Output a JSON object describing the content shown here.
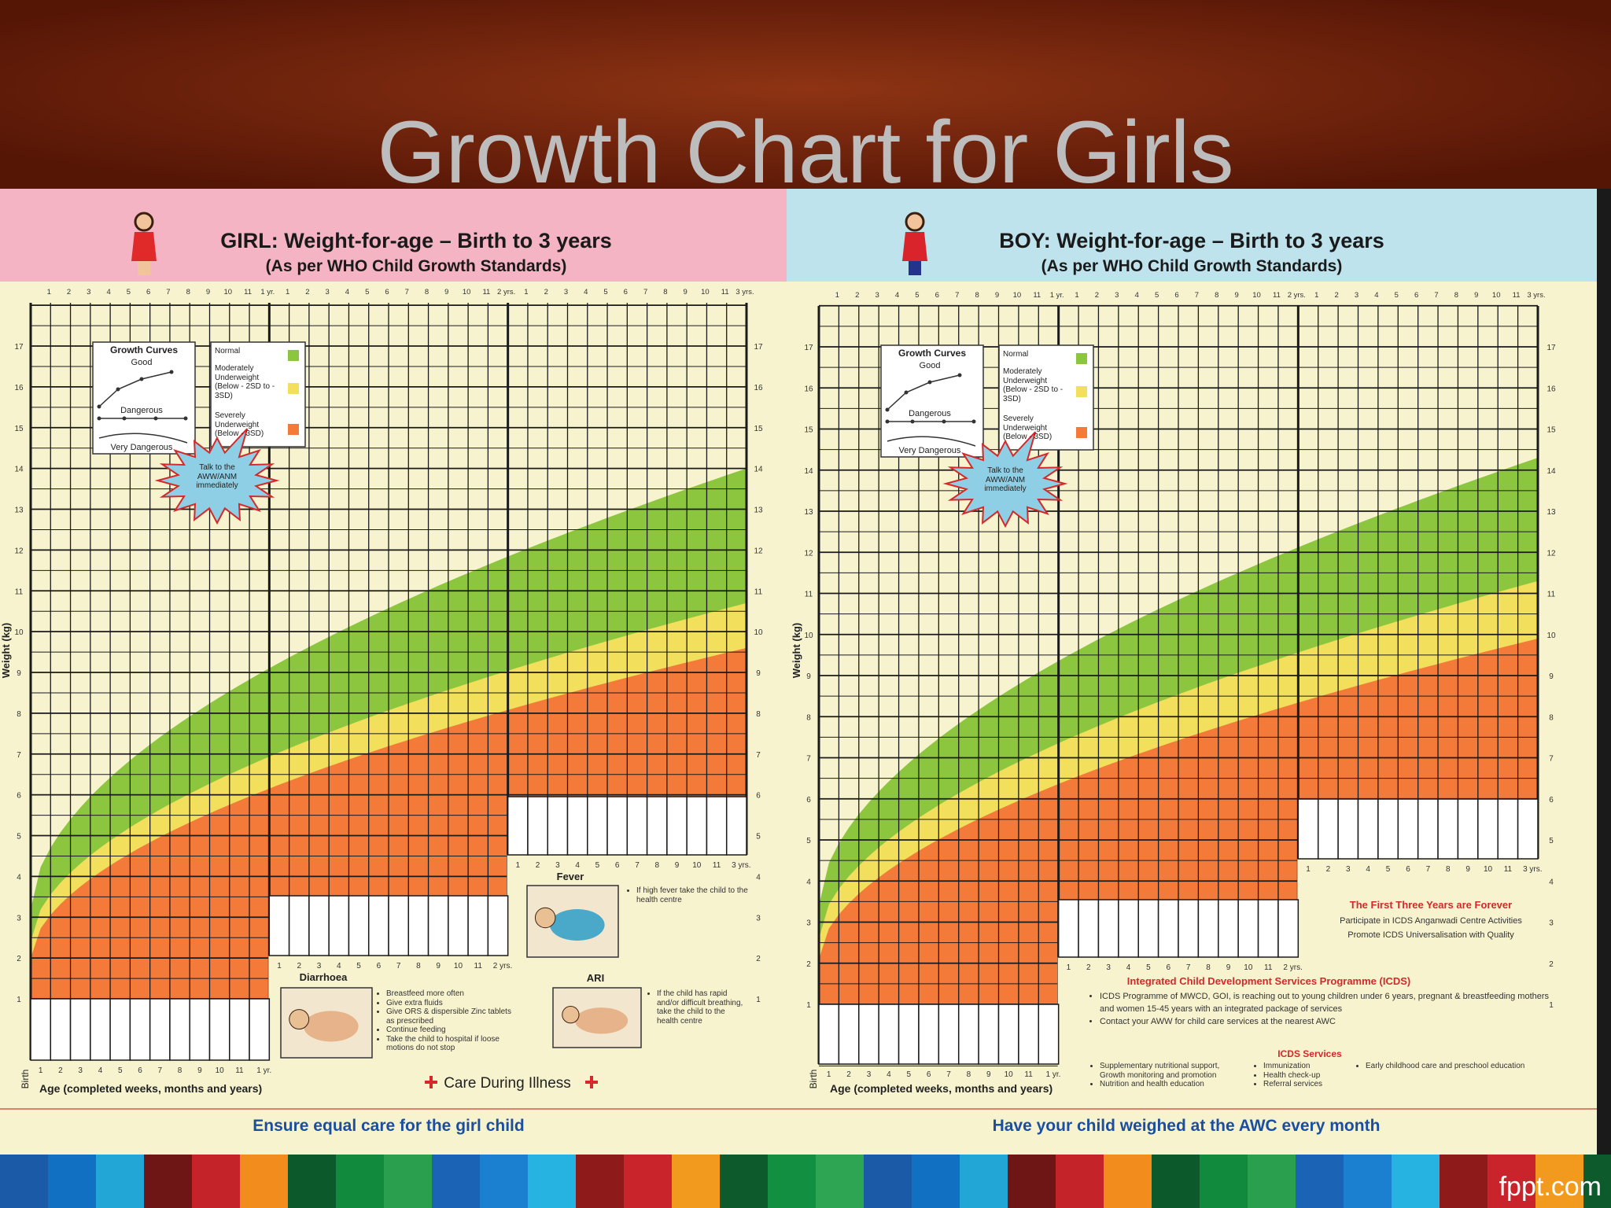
{
  "slide": {
    "title": "Growth Chart for Girls",
    "brand": "fppt.com"
  },
  "month_ticks": [
    "1",
    "2",
    "3",
    "4",
    "5",
    "6",
    "7",
    "8",
    "9",
    "10",
    "11",
    "1 yr.",
    "1",
    "2",
    "3",
    "4",
    "5",
    "6",
    "7",
    "8",
    "9",
    "10",
    "11",
    "2 yrs.",
    "1",
    "2",
    "3",
    "4",
    "5",
    "6",
    "7",
    "8",
    "9",
    "10",
    "11",
    "3 yrs."
  ],
  "weight_ticks": [
    1,
    2,
    3,
    4,
    5,
    6,
    7,
    8,
    9,
    10,
    11,
    12,
    13,
    14,
    15,
    16,
    17
  ],
  "panels": [
    {
      "title": "GIRL: Weight-for-age – Birth to 3 years",
      "subtitle": "(As per WHO Child Growth Standards)",
      "weight_label": "Weight (kg)",
      "age_label": "Age (completed weeks, months and years)",
      "birth_label": "Birth",
      "curves_title": "Growth Curves",
      "curves": [
        "Good",
        "Dangerous",
        "Very Dangerous"
      ],
      "zones": [
        "Normal",
        "Moderately Underweight (Below - 2SD to - 3SD)",
        "Severely Underweight (Below - 3SD)"
      ],
      "callout": "Talk to the AWW/ANM immediately",
      "footer": "Ensure equal care for the girl child"
    },
    {
      "title": "BOY: Weight-for-age – Birth to 3 years",
      "subtitle": "(As per WHO Child Growth Standards)",
      "weight_label": "Weight (kg)",
      "age_label": "Age (completed weeks, months and years)",
      "birth_label": "Birth",
      "curves_title": "Growth Curves",
      "curves": [
        "Good",
        "Dangerous",
        "Very Dangerous"
      ],
      "zones": [
        "Normal",
        "Moderately Underweight (Below - 2SD to - 3SD)",
        "Severely Underweight (Below - 3SD)"
      ],
      "callout": "Talk to the AWW/ANM immediately",
      "footer": "Have your child weighed at the AWC every month"
    }
  ],
  "illness": {
    "title": "Care During Illness",
    "items": [
      {
        "label": "Diarrhoea",
        "advice": [
          "Breastfeed more often",
          "Give extra fluids",
          "Give ORS & dispersible Zinc tablets as prescribed",
          "Continue feeding",
          "Take the child to hospital if loose motions do not stop"
        ]
      },
      {
        "label": "Fever",
        "advice": [
          "If high fever take the child to the health centre"
        ]
      },
      {
        "label": "ARI",
        "advice": [
          "If the child has rapid and/or difficult breathing, take the child to the health centre"
        ]
      }
    ]
  },
  "icds": {
    "slogan": "The First Three Years are Forever",
    "lines": [
      "Participate in ICDS Anganwadi Centre Activities",
      "Promote ICDS Universalisation with Quality"
    ],
    "programme": "Integrated Child Development Services Programme (ICDS)",
    "bullets": [
      "ICDS Programme of MWCD, GOI, is reaching out to young children under 6 years, pregnant & breastfeeding mothers and women 15-45 years with an integrated package of services",
      "Contact your AWW for child care services at the nearest AWC"
    ],
    "services_title": "ICDS Services",
    "services": [
      "Supplementary nutritional support, Growth monitoring and promotion",
      "Nutrition and health education",
      "Immunization",
      "Health check-up",
      "Referral services",
      "Early childhood care and preschool education"
    ]
  }
}
